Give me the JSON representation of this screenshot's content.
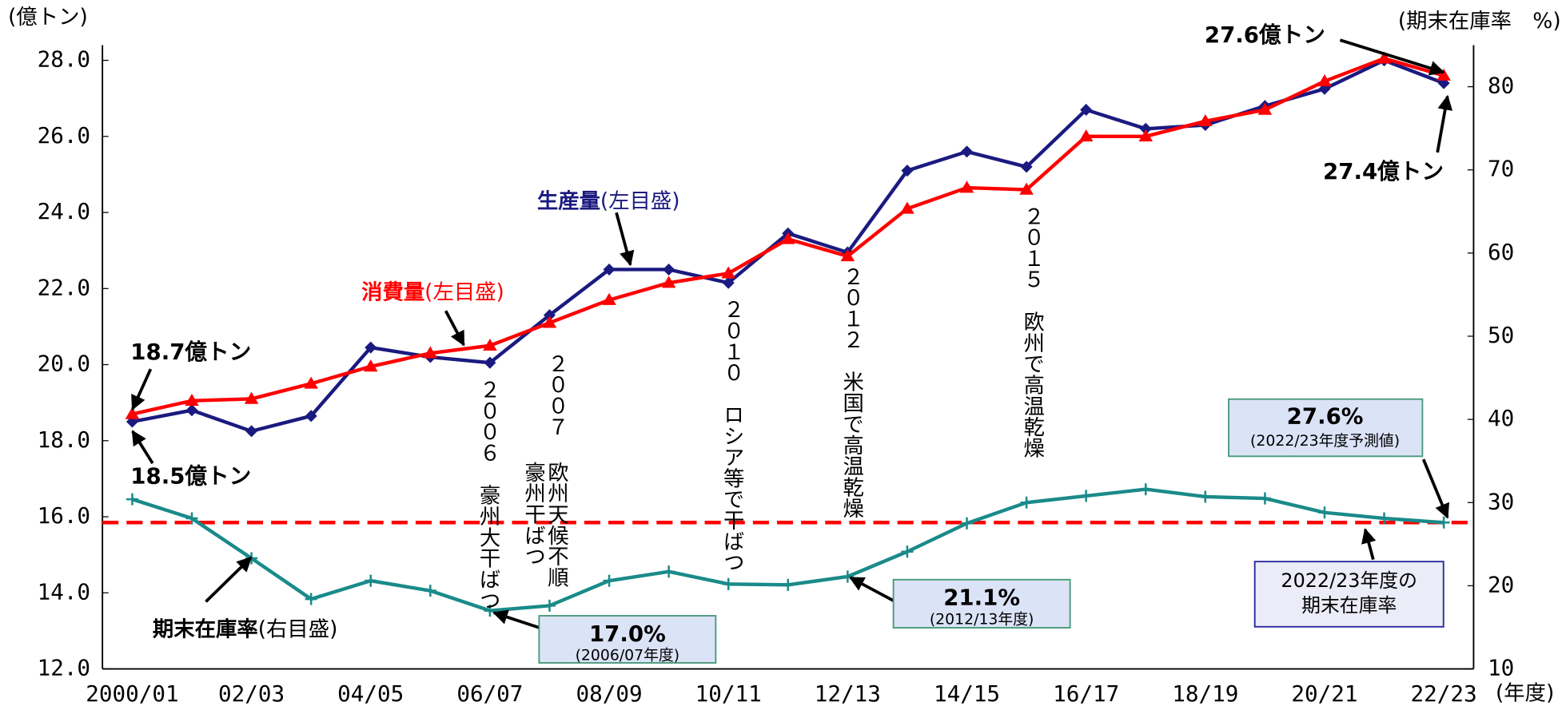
{
  "chart_data": {
    "type": "line",
    "categories": [
      "2000/01",
      null,
      "02/03",
      null,
      "04/05",
      null,
      "06/07",
      null,
      "08/09",
      null,
      "10/11",
      null,
      "12/13",
      null,
      "14/15",
      null,
      "16/17",
      null,
      "18/19",
      null,
      "20/21",
      null,
      "22/23"
    ],
    "series": [
      {
        "name": "生産量",
        "axis_note": "(左目盛)",
        "color": "#1a1a80",
        "marker": "diamond",
        "values": [
          18.5,
          18.8,
          18.25,
          18.65,
          20.45,
          20.2,
          20.05,
          21.3,
          22.5,
          22.5,
          22.15,
          23.45,
          22.95,
          25.1,
          25.6,
          25.2,
          26.7,
          26.2,
          26.3,
          26.8,
          27.25,
          28.0,
          27.4
        ]
      },
      {
        "name": "消費量",
        "axis_note": "(左目盛)",
        "color": "#ff0000",
        "marker": "triangle",
        "values": [
          18.7,
          19.05,
          19.1,
          19.5,
          19.95,
          20.3,
          20.5,
          21.1,
          21.7,
          22.15,
          22.4,
          23.3,
          22.85,
          24.1,
          24.65,
          24.6,
          26.0,
          26.0,
          26.4,
          26.7,
          27.45,
          28.05,
          27.6
        ]
      },
      {
        "name": "期末在庫率",
        "axis_note": "(右目盛)",
        "color": "#1a8a8a",
        "marker": "plus",
        "axis": "y2",
        "values": [
          30.4,
          28.1,
          23.3,
          18.4,
          20.6,
          19.4,
          17.0,
          17.6,
          20.6,
          21.7,
          20.2,
          20.1,
          21.1,
          24.1,
          27.5,
          30.0,
          30.8,
          31.6,
          30.7,
          30.5,
          28.8,
          28.1,
          27.6
        ]
      }
    ],
    "ylim": [
      12.0,
      28.4
    ],
    "yticks": [
      {
        "value": 12,
        "label": "12.0"
      },
      {
        "value": 14,
        "label": "14.0"
      },
      {
        "value": 16,
        "label": "16.0"
      },
      {
        "value": 18,
        "label": "18.0"
      },
      {
        "value": 20,
        "label": "20.0"
      },
      {
        "value": 22,
        "label": "22.0"
      },
      {
        "value": 24,
        "label": "24.0"
      },
      {
        "value": 26,
        "label": "26.0"
      },
      {
        "value": 28,
        "label": "28.0"
      }
    ],
    "y2lim": [
      10,
      85
    ],
    "y2ticks": [
      10,
      20,
      30,
      40,
      50,
      60,
      70,
      80
    ],
    "reference_line": {
      "axis": "y2",
      "value": 27.6,
      "color": "#ff0000"
    },
    "y_axis_label": "(億トン)",
    "y2_axis_label": "(期末在庫率　%)",
    "x_axis_label": "(年度)",
    "value_callouts": [
      {
        "text": "18.7億トン",
        "color": "#ff0000"
      },
      {
        "text": "18.5億トン",
        "color": "#1a1a80"
      },
      {
        "text": "27.6億トン",
        "color": "#ff0000"
      },
      {
        "text": "27.4億トン",
        "color": "#1a1a80"
      }
    ],
    "events": [
      "２００６　豪州大干ばつ",
      "２００７",
      "欧州天候不順",
      "豪州干ばつ",
      "２０１０　ロシア等で干ばつ",
      "２０１２　米国で高温乾燥",
      "２０１５　欧州で高温乾燥"
    ],
    "boxes": [
      {
        "title": "27.6%",
        "subtitle": "(2022/23年度予測値)"
      },
      {
        "title": "17.0%",
        "subtitle": "(2006/07年度)"
      },
      {
        "title": "21.1%",
        "subtitle": "(2012/13年度)"
      },
      {
        "title": "2022/23年度の",
        "subtitle": "期末在庫率"
      }
    ]
  }
}
